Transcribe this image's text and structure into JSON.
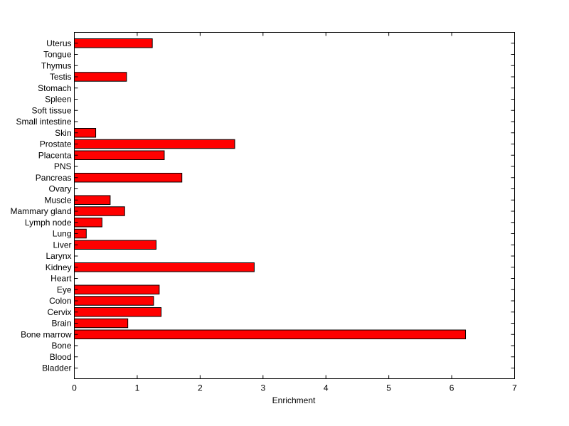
{
  "chart_data": {
    "type": "bar",
    "orientation": "horizontal",
    "title": "",
    "xlabel": "Enrichment",
    "ylabel": "",
    "xlim": [
      0,
      7
    ],
    "xticks": [
      0,
      1,
      2,
      3,
      4,
      5,
      6,
      7
    ],
    "grid": false,
    "bar_color": "#ff0000",
    "bar_edge_color": "#000000",
    "categories": [
      "Bladder",
      "Blood",
      "Bone",
      "Bone marrow",
      "Brain",
      "Cervix",
      "Colon",
      "Eye",
      "Heart",
      "Kidney",
      "Larynx",
      "Liver",
      "Lung",
      "Lymph node",
      "Mammary gland",
      "Muscle",
      "Ovary",
      "Pancreas",
      "PNS",
      "Placenta",
      "Prostate",
      "Skin",
      "Small intestine",
      "Soft tissue",
      "Spleen",
      "Stomach",
      "Testis",
      "Thymus",
      "Tongue",
      "Uterus"
    ],
    "values": [
      0,
      0,
      0,
      6.22,
      0.85,
      1.38,
      1.26,
      1.35,
      0,
      2.86,
      0,
      1.3,
      0.19,
      0.44,
      0.8,
      0.57,
      0,
      1.71,
      0,
      1.43,
      2.55,
      0.34,
      0,
      0,
      0,
      0,
      0.83,
      0,
      0,
      1.24
    ]
  }
}
